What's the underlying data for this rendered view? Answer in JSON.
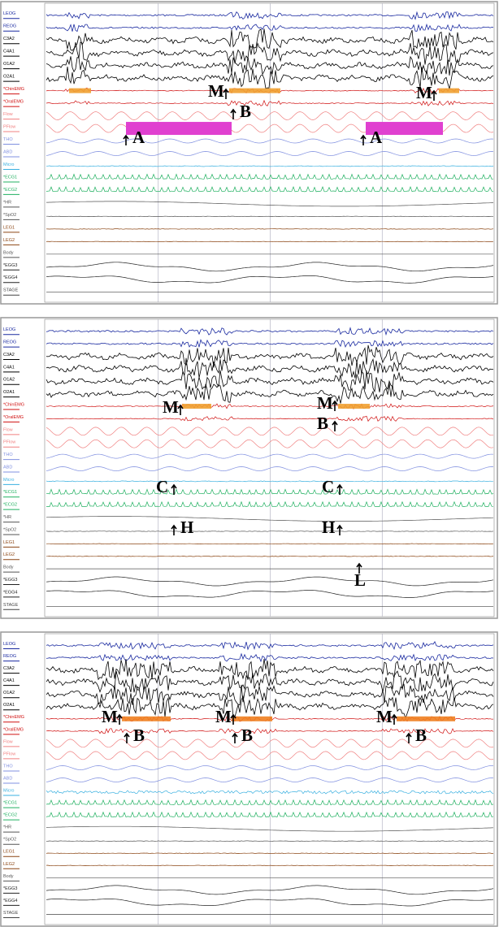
{
  "panels": [
    {
      "channels": [
        "LEOG",
        "REOG",
        "C3A2",
        "C4A1",
        "O1A2",
        "O2A1",
        "*ChinEMG",
        "*OralEMG",
        "Flow",
        "PFlow",
        "THO",
        "ABD",
        "Micro",
        "*ECG1",
        "*ECG2",
        "*HR",
        "*SpO2",
        "LEG1",
        "LEG2",
        "Body",
        "*EGG3",
        "*EGG4",
        "STAGE"
      ],
      "annotations": [
        "M",
        "B",
        "A",
        "A",
        "M"
      ]
    },
    {
      "channels": [
        "LEOG",
        "REOG",
        "C3A2",
        "C4A1",
        "O1A2",
        "O2A1",
        "*ChinEMG",
        "*OralEMG",
        "Flow",
        "PFlow",
        "THO",
        "ABD",
        "Micro",
        "*ECG1",
        "*ECG2",
        "*HR",
        "*SpO2",
        "LEG1",
        "LEG2",
        "Body",
        "*EGG3",
        "*EGG4",
        "STAGE"
      ],
      "annotations": [
        "M",
        "M",
        "B",
        "C",
        "H",
        "C",
        "H",
        "L"
      ]
    },
    {
      "channels": [
        "LEOG",
        "REOG",
        "C3A2",
        "C4A1",
        "O1A2",
        "O2A1",
        "*ChinEMG",
        "*OralEMG",
        "Flow",
        "PFlow",
        "THO",
        "ABD",
        "Micro",
        "*ECG1",
        "*ECG2",
        "*HR",
        "*SpO2",
        "LEG1",
        "LEG2",
        "Body",
        "*EGG3",
        "*EGG4",
        "STAGE"
      ],
      "annotations": [
        "M",
        "B",
        "M",
        "B",
        "M",
        "B"
      ]
    }
  ]
}
